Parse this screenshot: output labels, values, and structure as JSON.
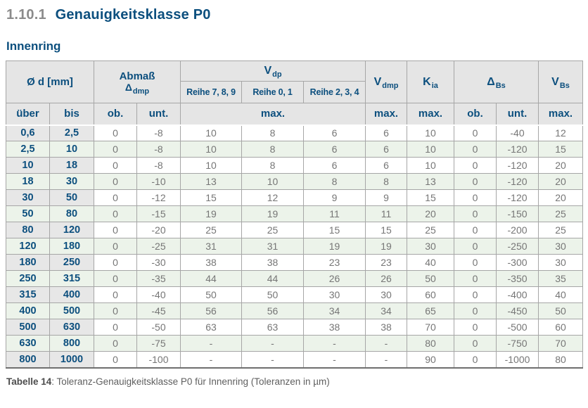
{
  "page": {
    "section_number": "1.10.1",
    "section_title": "Genauigkeitsklasse P0",
    "subtitle": "Innenring",
    "caption_label": "Tabelle 14",
    "caption_rest": ": Toleranz-Genauigkeitsklasse P0 für Innenring (Toleranzen in µm)"
  },
  "colors": {
    "accent_blue": "#0c4f7e",
    "header_gray": "#e5e5e5",
    "row_green": "#ecf3ea",
    "diameter_col_gray": "#e7e7e7",
    "value_text_gray": "#767676",
    "border_gray": "#a6a6a6"
  },
  "table": {
    "header": {
      "diameter": "Ø d [mm]",
      "abmass": "Abmaß",
      "abmass_sym": "Δ",
      "abmass_sub": "dmp",
      "vdp_main": "V",
      "vdp_sub": "dp",
      "reihe_789": "Reihe 7, 8, 9",
      "reihe_01": "Reihe 0, 1",
      "reihe_234": "Reihe 2, 3, 4",
      "vdmp_main": "V",
      "vdmp_sub": "dmp",
      "kia_main": "K",
      "kia_sub": "ia",
      "dbs_main": "Δ",
      "dbs_sub": "Bs",
      "vbs_main": "V",
      "vbs_sub": "Bs",
      "ueber": "über",
      "bis": "bis",
      "ob": "ob.",
      "unt": "unt.",
      "max": "max."
    },
    "rows": [
      [
        "0,6",
        "2,5",
        "0",
        "-8",
        "10",
        "8",
        "6",
        "6",
        "10",
        "0",
        "-40",
        "12"
      ],
      [
        "2,5",
        "10",
        "0",
        "-8",
        "10",
        "8",
        "6",
        "6",
        "10",
        "0",
        "-120",
        "15"
      ],
      [
        "10",
        "18",
        "0",
        "-8",
        "10",
        "8",
        "6",
        "6",
        "10",
        "0",
        "-120",
        "20"
      ],
      [
        "18",
        "30",
        "0",
        "-10",
        "13",
        "10",
        "8",
        "8",
        "13",
        "0",
        "-120",
        "20"
      ],
      [
        "30",
        "50",
        "0",
        "-12",
        "15",
        "12",
        "9",
        "9",
        "15",
        "0",
        "-120",
        "20"
      ],
      [
        "50",
        "80",
        "0",
        "-15",
        "19",
        "19",
        "11",
        "11",
        "20",
        "0",
        "-150",
        "25"
      ],
      [
        "80",
        "120",
        "0",
        "-20",
        "25",
        "25",
        "15",
        "15",
        "25",
        "0",
        "-200",
        "25"
      ],
      [
        "120",
        "180",
        "0",
        "-25",
        "31",
        "31",
        "19",
        "19",
        "30",
        "0",
        "-250",
        "30"
      ],
      [
        "180",
        "250",
        "0",
        "-30",
        "38",
        "38",
        "23",
        "23",
        "40",
        "0",
        "-300",
        "30"
      ],
      [
        "250",
        "315",
        "0",
        "-35",
        "44",
        "44",
        "26",
        "26",
        "50",
        "0",
        "-350",
        "35"
      ],
      [
        "315",
        "400",
        "0",
        "-40",
        "50",
        "50",
        "30",
        "30",
        "60",
        "0",
        "-400",
        "40"
      ],
      [
        "400",
        "500",
        "0",
        "-45",
        "56",
        "56",
        "34",
        "34",
        "65",
        "0",
        "-450",
        "50"
      ],
      [
        "500",
        "630",
        "0",
        "-50",
        "63",
        "63",
        "38",
        "38",
        "70",
        "0",
        "-500",
        "60"
      ],
      [
        "630",
        "800",
        "0",
        "-75",
        "-",
        "-",
        "-",
        "-",
        "80",
        "0",
        "-750",
        "70"
      ],
      [
        "800",
        "1000",
        "0",
        "-100",
        "-",
        "-",
        "-",
        "-",
        "90",
        "0",
        "-1000",
        "80"
      ]
    ]
  }
}
